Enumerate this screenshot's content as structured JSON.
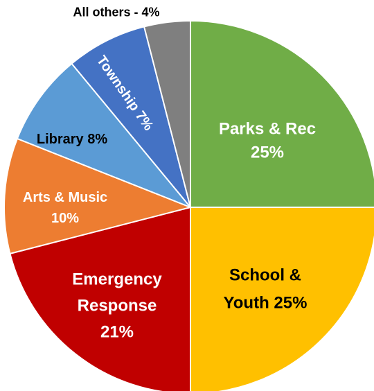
{
  "chart_data": {
    "type": "pie",
    "title": "",
    "slices": [
      {
        "label": "Parks & Rec",
        "display": [
          "Parks & Rec",
          "25%"
        ],
        "value": 25,
        "color": "#70AD47",
        "text_color": "#ffffff"
      },
      {
        "label": "School & Youth",
        "display": [
          "School &",
          "Youth 25%"
        ],
        "value": 25,
        "color": "#FFC000",
        "text_color": "#000000"
      },
      {
        "label": "Emergency Response",
        "display": [
          "Emergency",
          "Response",
          "21%"
        ],
        "value": 21,
        "color": "#C00000",
        "text_color": "#ffffff"
      },
      {
        "label": "Arts & Music",
        "display": [
          "Arts & Music",
          "10%"
        ],
        "value": 10,
        "color": "#ED7D31",
        "text_color": "#ffffff"
      },
      {
        "label": "Library",
        "display": [
          "Library 8%"
        ],
        "value": 8,
        "color": "#5B9BD5",
        "text_color": "#000000"
      },
      {
        "label": "Township",
        "display": [
          "Township 7%"
        ],
        "value": 7,
        "color": "#4472C4",
        "text_color": "#ffffff"
      },
      {
        "label": "All others",
        "display": [
          "All others - 4%"
        ],
        "value": 4,
        "color": "#7F7F7F",
        "text_color": "#000000"
      }
    ]
  }
}
